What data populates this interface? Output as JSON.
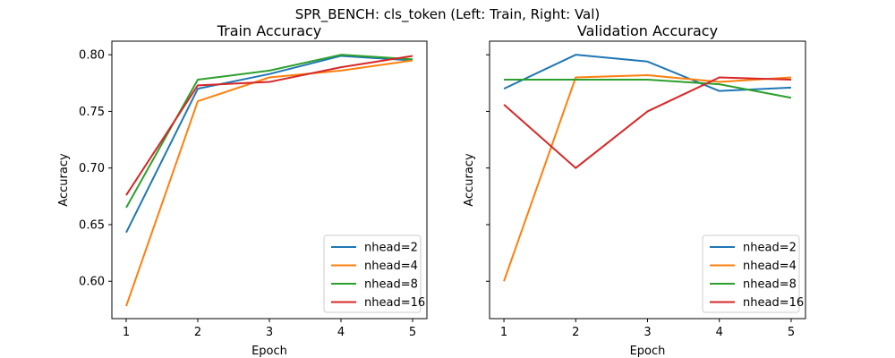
{
  "figure": {
    "suptitle": "SPR_BENCH: cls_token (Left: Train, Right: Val)"
  },
  "colors": {
    "nhead=2": "#1f77b4",
    "nhead=4": "#ff7f0e",
    "nhead=8": "#2ca02c",
    "nhead=16": "#d62728"
  },
  "chart_data": [
    {
      "type": "line",
      "title": "Train Accuracy",
      "xlabel": "Epoch",
      "ylabel": "Accuracy",
      "x": [
        1,
        2,
        3,
        4,
        5
      ],
      "xticks": [
        1,
        2,
        3,
        4,
        5
      ],
      "yticks": [
        0.6,
        0.65,
        0.7,
        0.75,
        0.8
      ],
      "ytick_labels": [
        "0.60",
        "0.65",
        "0.70",
        "0.75",
        "0.80"
      ],
      "show_ytick_labels": true,
      "xlim": [
        0.8,
        5.2
      ],
      "ylim": [
        0.567,
        0.812
      ],
      "grid": false,
      "legend": "lower-right",
      "series": [
        {
          "name": "nhead=2",
          "values": [
            0.643,
            0.77,
            0.783,
            0.799,
            0.795
          ]
        },
        {
          "name": "nhead=4",
          "values": [
            0.578,
            0.759,
            0.78,
            0.786,
            0.795
          ]
        },
        {
          "name": "nhead=8",
          "values": [
            0.665,
            0.778,
            0.786,
            0.8,
            0.796
          ]
        },
        {
          "name": "nhead=16",
          "values": [
            0.676,
            0.773,
            0.776,
            0.789,
            0.799
          ]
        }
      ]
    },
    {
      "type": "line",
      "title": "Validation Accuracy",
      "xlabel": "Epoch",
      "ylabel": "Accuracy",
      "x": [
        1,
        2,
        3,
        4,
        5
      ],
      "xticks": [
        1,
        2,
        3,
        4,
        5
      ],
      "yticks": [
        0.6,
        0.65,
        0.7,
        0.75,
        0.8
      ],
      "ytick_labels": [
        "0.60",
        "0.65",
        "0.70",
        "0.75",
        "0.80"
      ],
      "show_ytick_labels": false,
      "xlim": [
        0.8,
        5.2
      ],
      "ylim": [
        0.567,
        0.812
      ],
      "grid": false,
      "legend": "lower-right",
      "series": [
        {
          "name": "nhead=2",
          "values": [
            0.77,
            0.8,
            0.794,
            0.768,
            0.771
          ]
        },
        {
          "name": "nhead=4",
          "values": [
            0.6,
            0.78,
            0.782,
            0.776,
            0.78
          ]
        },
        {
          "name": "nhead=8",
          "values": [
            0.778,
            0.778,
            0.778,
            0.774,
            0.762
          ]
        },
        {
          "name": "nhead=16",
          "values": [
            0.756,
            0.7,
            0.75,
            0.78,
            0.778
          ]
        }
      ]
    }
  ]
}
